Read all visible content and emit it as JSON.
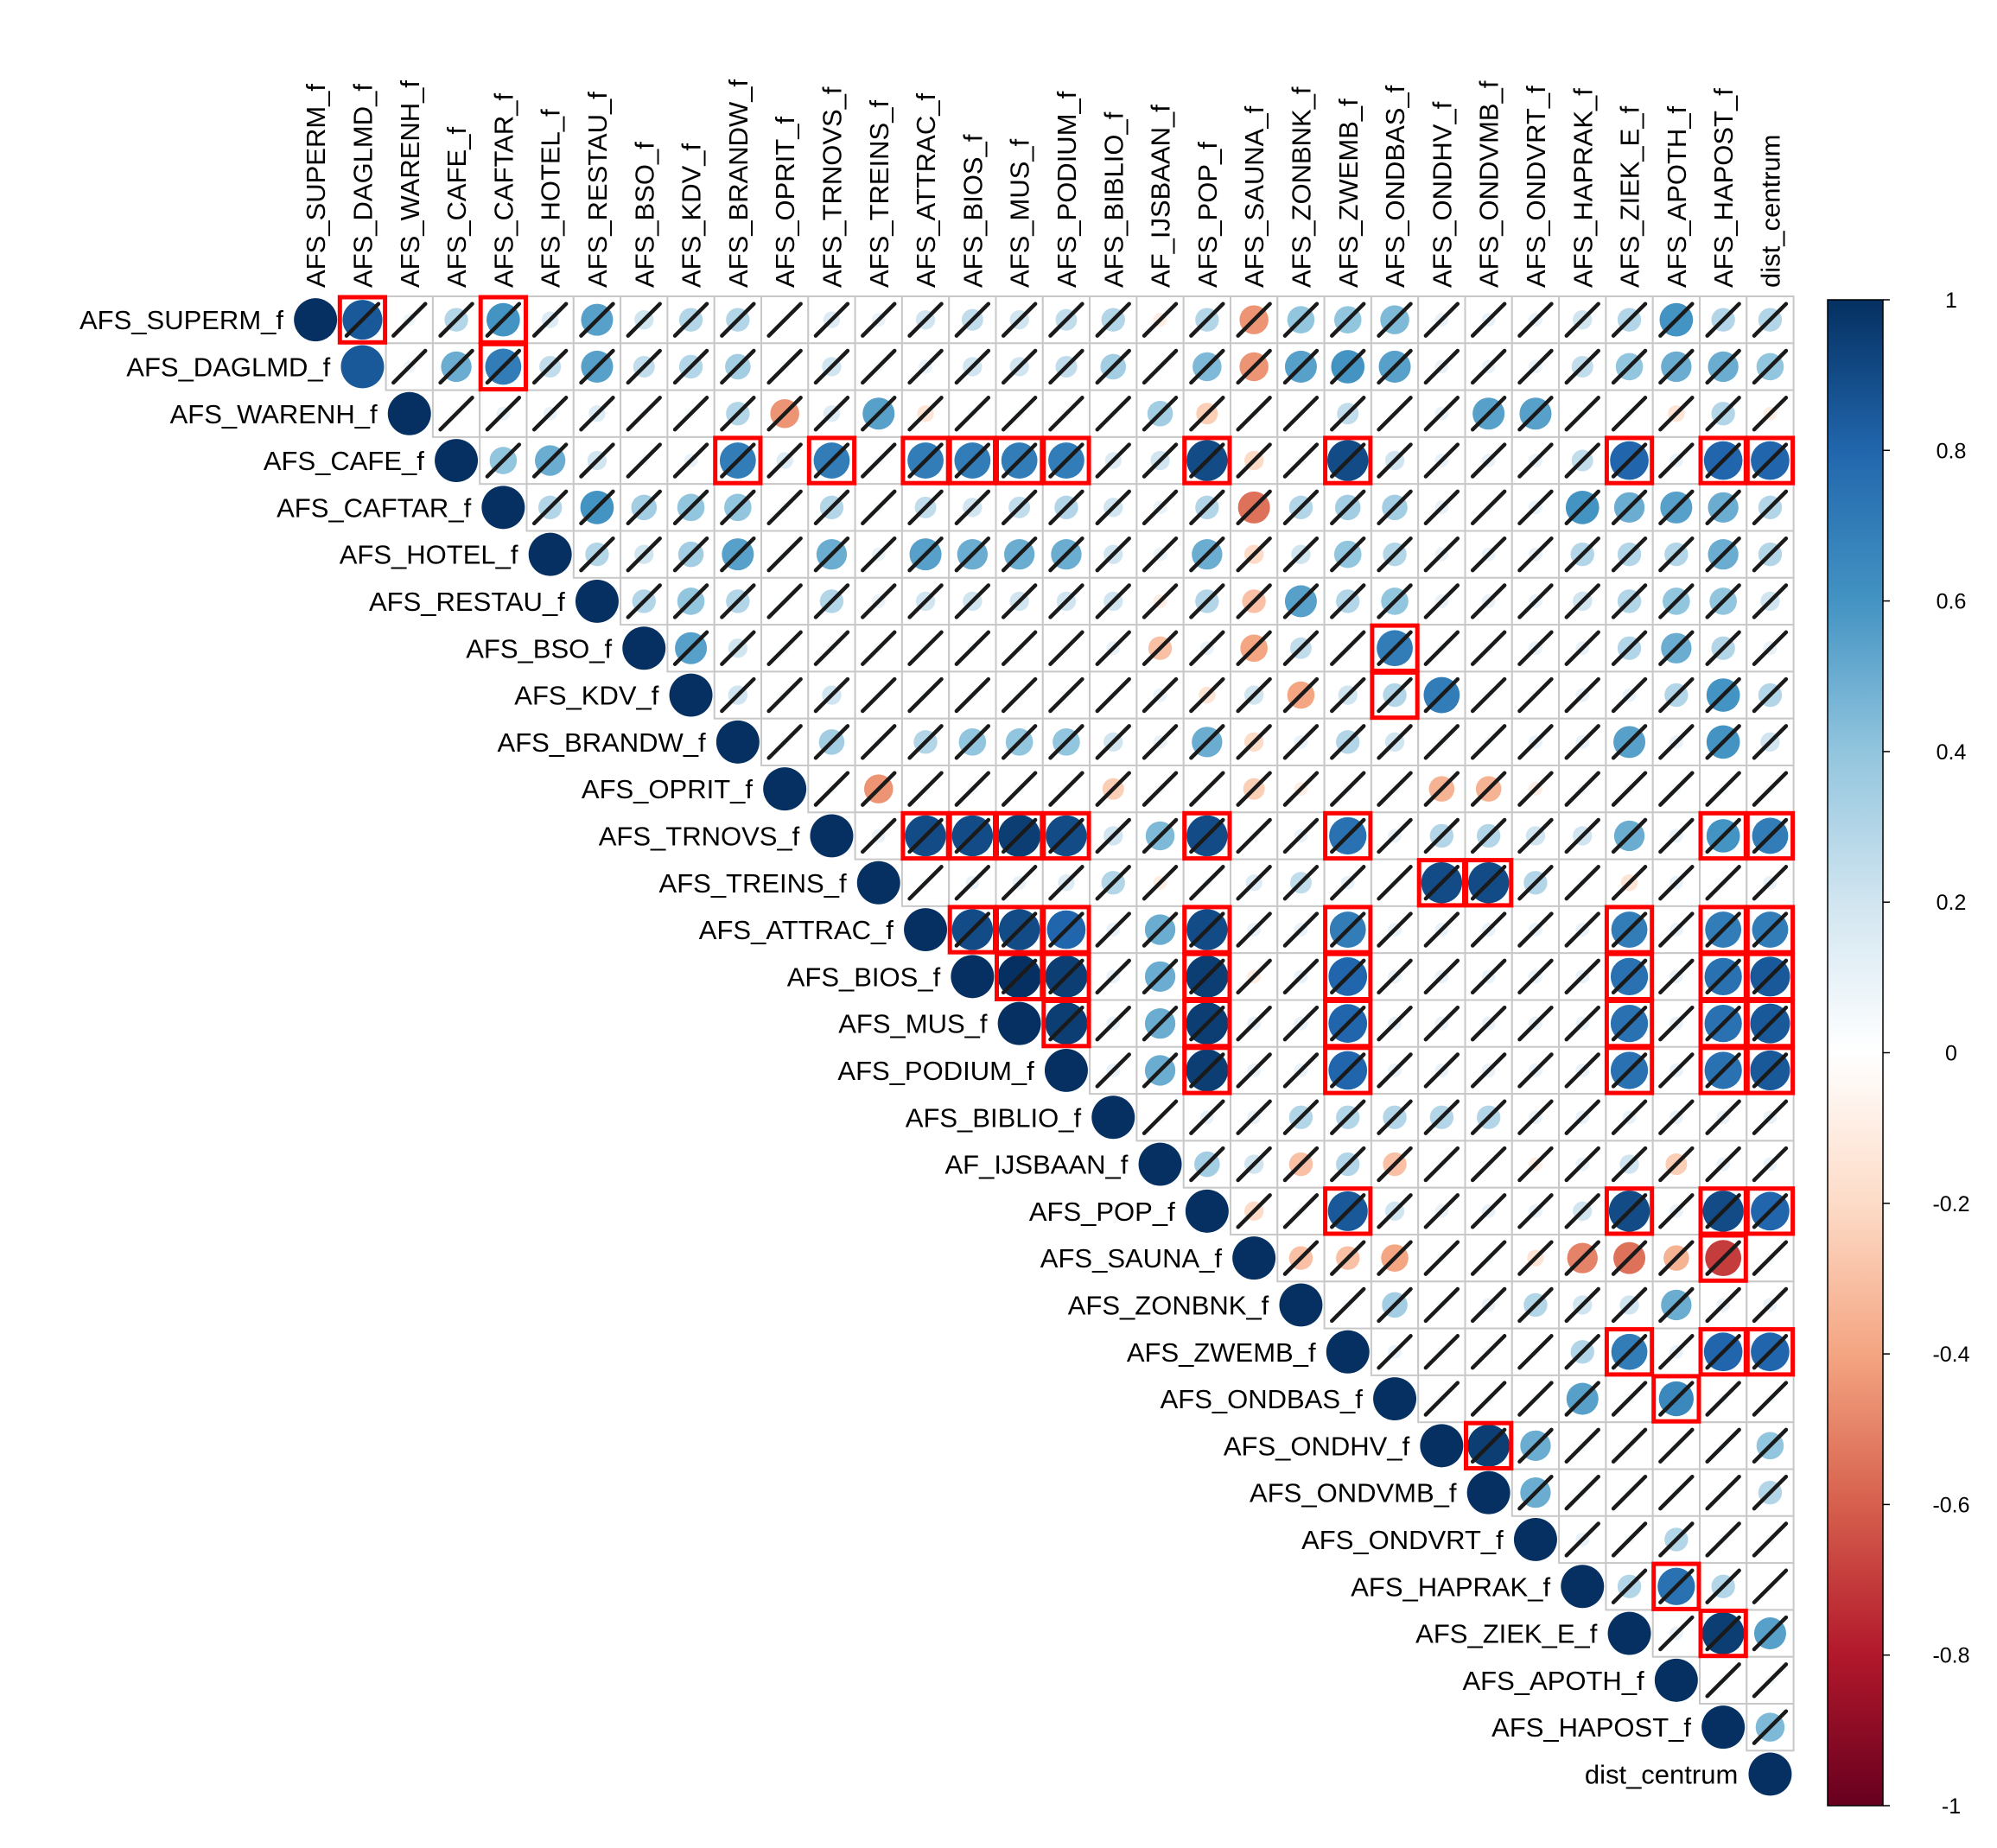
{
  "chart_data": {
    "type": "heatmap",
    "style": "corrplot-upper-circle",
    "title": "",
    "variables": [
      "AFS_SUPERM_f",
      "AFS_DAGLMD_f",
      "AFS_WARENH_f",
      "AFS_CAFE_f",
      "AFS_CAFTAR_f",
      "AFS_HOTEL_f",
      "AFS_RESTAU_f",
      "AFS_BSO_f",
      "AFS_KDV_f",
      "AFS_BRANDW_f",
      "AFS_OPRIT_f",
      "AFS_TRNOVS_f",
      "AFS_TREINS_f",
      "AFS_ATTRAC_f",
      "AFS_BIOS_f",
      "AFS_MUS_f",
      "AFS_PODIUM_f",
      "AFS_BIBLIO_f",
      "AF_IJSBAAN_f",
      "AFS_POP_f",
      "AFS_SAUNA_f",
      "AFS_ZONBNK_f",
      "AFS_ZWEMB_f",
      "AFS_ONDBAS_f",
      "AFS_ONDHV_f",
      "AFS_ONDVMB_f",
      "AFS_ONDVRT_f",
      "AFS_HAPRAK_f",
      "AFS_ZIEK_E_f",
      "AFS_APOTH_f",
      "AFS_HAPOST_f",
      "dist_centrum"
    ],
    "row_labels": [
      "AFS_SUPERM_f",
      "AFS_DAGLMD_f",
      "AFS_WARENH_f",
      "AFS_CAFE_f",
      "AFS_CAFTAR_f",
      "AFS_HOTEL_f",
      "AFS_RESTAU_f",
      "AFS_BSO_f",
      "AFS_KDV_f",
      "AFS_BRANDW_f",
      "AFS_OPRIT_f",
      "AFS_TRNOVS_f",
      "AFS_TREINS_f",
      "AFS_ATTRAC_f",
      "AFS_BIOS_f",
      "AFS_MUS_f",
      "AFS_PODIUM_f",
      "AFS_BIBLIO_f",
      "AF_IJSBAAN_f",
      "AFS_POP_f",
      "AFS_SAUNA_f",
      "AFS_ZONBNK_f",
      "AFS_ZWEMB_f",
      "AFS_ONDBAS_f",
      "AFS_ONDHV_f",
      "AFS_ONDVMB_f",
      "AFS_ONDVRT_f",
      "AFS_HAPRAK_f",
      "AFS_ZIEK_E_f",
      "AFS_APOTH_f",
      "AFS_HAPOST_f",
      "dist_centrum"
    ],
    "matrix_upper": [
      [
        1,
        0.85,
        0.08,
        0.3,
        0.6,
        0.15,
        0.55,
        0.2,
        0.3,
        0.3,
        0.03,
        0.15,
        0.1,
        0.2,
        0.25,
        0.2,
        0.25,
        0.3,
        -0.1,
        0.3,
        -0.45,
        0.4,
        0.4,
        0.45,
        0.1,
        0.1,
        0.1,
        0.2,
        0.3,
        0.6,
        0.3,
        0.3
      ],
      [
        0.85,
        0.08,
        0.5,
        0.7,
        0.25,
        0.55,
        0.25,
        0.3,
        0.35,
        0.05,
        0.2,
        0.05,
        0.1,
        0.2,
        0.2,
        0.25,
        0.35,
        0.05,
        0.45,
        -0.45,
        0.55,
        0.6,
        0.55,
        0.1,
        0.1,
        0.1,
        0.25,
        0.4,
        0.5,
        0.5,
        0.4
      ],
      [
        1,
        0.05,
        0.1,
        0.1,
        0.15,
        0.05,
        0.05,
        0.3,
        -0.45,
        0.15,
        0.55,
        -0.15,
        0.05,
        0.05,
        0.05,
        0.05,
        0.35,
        -0.25,
        0.05,
        0.05,
        0.25,
        0.05,
        0.1,
        0.55,
        0.55,
        0.05,
        0.05,
        -0.15,
        0.3,
        -0.1,
        0.05
      ],
      [
        1,
        0.4,
        0.5,
        0.2,
        0.05,
        0.1,
        0.7,
        0.15,
        0.7,
        0.05,
        0.7,
        0.7,
        0.7,
        0.7,
        0.15,
        0.2,
        0.9,
        -0.2,
        0.05,
        0.9,
        0.2,
        0.1,
        0.1,
        0.1,
        0.25,
        0.8,
        0.1,
        0.8,
        0.8
      ],
      [
        1,
        0.3,
        0.6,
        0.35,
        0.4,
        0.4,
        0.05,
        0.3,
        0.05,
        0.25,
        0.2,
        0.25,
        0.3,
        0.2,
        0.1,
        0.3,
        -0.55,
        0.3,
        0.35,
        0.35,
        0.1,
        0.05,
        0.1,
        0.6,
        0.5,
        0.55,
        0.5,
        0.3
      ],
      [
        1,
        0.3,
        0.2,
        0.35,
        0.55,
        0.05,
        0.5,
        0.1,
        0.55,
        0.5,
        0.5,
        0.5,
        0.2,
        0.1,
        0.5,
        -0.2,
        0.2,
        0.4,
        0.3,
        0.1,
        0.1,
        0.1,
        0.3,
        0.3,
        0.3,
        0.5,
        0.3
      ],
      [
        1,
        0.3,
        0.4,
        0.3,
        0.05,
        0.3,
        0.1,
        0.2,
        0.2,
        0.2,
        0.2,
        0.2,
        -0.1,
        0.3,
        -0.3,
        0.55,
        0.3,
        0.4,
        0.1,
        0.1,
        0.1,
        0.2,
        0.3,
        0.4,
        0.4,
        0.2
      ],
      [
        1,
        0.55,
        0.2,
        0.05,
        0.05,
        0.05,
        0.05,
        0.05,
        0.05,
        0.05,
        0.1,
        -0.3,
        0.1,
        -0.4,
        0.25,
        0.05,
        0.7,
        0.05,
        0.05,
        0.1,
        0.1,
        0.3,
        0.5,
        0.3,
        0.1
      ],
      [
        1,
        0.2,
        0.05,
        0.2,
        0.05,
        0.05,
        0.05,
        0.05,
        0.05,
        0.05,
        0.1,
        -0.15,
        0.2,
        -0.4,
        0.2,
        0.3,
        0.7,
        0.05,
        0.05,
        0.1,
        0.1,
        0.3,
        0.6,
        0.3,
        0.1
      ],
      [
        1,
        0.05,
        0.35,
        0.05,
        0.3,
        0.4,
        0.4,
        0.4,
        0.2,
        0.1,
        0.5,
        -0.2,
        0.1,
        0.3,
        0.2,
        0.05,
        0.05,
        0.1,
        0.1,
        0.55,
        0.1,
        0.6,
        0.2
      ],
      [
        1,
        0.05,
        -0.45,
        0.05,
        0.05,
        0.05,
        0.05,
        -0.25,
        0.05,
        0.05,
        -0.25,
        -0.1,
        0.05,
        0.05,
        -0.35,
        -0.35,
        -0.1,
        0.05,
        0.05,
        0.05,
        0.05,
        0.05
      ],
      [
        1,
        0.1,
        0.9,
        0.9,
        0.95,
        0.9,
        0.2,
        0.45,
        0.9,
        0.05,
        0.1,
        0.75,
        0.1,
        0.3,
        0.3,
        0.2,
        0.2,
        0.5,
        0.1,
        0.6,
        0.7
      ],
      [
        1,
        0.05,
        0.1,
        0.1,
        0.15,
        0.3,
        -0.1,
        0.05,
        0.15,
        0.25,
        0.1,
        0.05,
        0.9,
        0.9,
        0.3,
        0.05,
        -0.15,
        0.1,
        0.05,
        0.1
      ],
      [
        1,
        0.9,
        0.9,
        0.8,
        0.1,
        0.5,
        0.9,
        0.1,
        0.1,
        0.7,
        0.1,
        0.1,
        0.1,
        0.1,
        0.1,
        0.7,
        0.1,
        0.7,
        0.7
      ],
      [
        1,
        1,
        0.95,
        0.1,
        0.5,
        0.95,
        -0.1,
        0.1,
        0.8,
        0.1,
        0.1,
        0.1,
        0.1,
        0.1,
        0.75,
        0.1,
        0.75,
        0.85
      ],
      [
        1,
        0.95,
        0.1,
        0.5,
        0.95,
        0.1,
        0.1,
        0.8,
        0.1,
        0.1,
        0.1,
        0.1,
        0.1,
        0.75,
        0.1,
        0.75,
        0.85
      ],
      [
        1,
        0.1,
        0.5,
        0.95,
        0.1,
        0.1,
        0.8,
        0.1,
        0.1,
        0.1,
        0.1,
        0.1,
        0.75,
        0.1,
        0.75,
        0.85
      ],
      [
        1,
        0.05,
        0.1,
        0.1,
        0.3,
        0.3,
        0.3,
        0.3,
        0.3,
        0.1,
        0.1,
        0.1,
        0.1,
        0.1,
        0.1
      ],
      [
        1,
        0.35,
        0.2,
        -0.3,
        0.3,
        -0.3,
        0.05,
        0.05,
        -0.1,
        0.1,
        0.2,
        -0.25,
        0.1,
        0.1
      ],
      [
        1,
        -0.2,
        0.05,
        0.85,
        0.2,
        0.1,
        0.1,
        0.1,
        0.2,
        0.9,
        0.1,
        0.9,
        0.8
      ],
      [
        1,
        -0.3,
        -0.3,
        -0.4,
        0.05,
        0.05,
        -0.15,
        -0.5,
        -0.55,
        -0.35,
        -0.7,
        0.05
      ],
      [
        1,
        0.05,
        0.35,
        0.05,
        0.1,
        0.3,
        0.2,
        0.2,
        0.5,
        0.1,
        0.1
      ],
      [
        1,
        0.1,
        0.05,
        0.05,
        0.05,
        0.3,
        0.7,
        0.1,
        0.8,
        0.8
      ],
      [
        1,
        0.05,
        0.05,
        0.05,
        0.55,
        0.05,
        0.65,
        0.05,
        0.05
      ],
      [
        1,
        0.95,
        0.5,
        0.05,
        0.05,
        0.05,
        0.05,
        0.4
      ],
      [
        1,
        0.5,
        0.05,
        0.05,
        0.05,
        0.05,
        0.3
      ],
      [
        1,
        0.1,
        0.05,
        0.3,
        0.05,
        0.05
      ],
      [
        1,
        0.3,
        0.75,
        0.3,
        0.05
      ],
      [
        1,
        0.1,
        0.95,
        0.55
      ],
      [
        1,
        0.05,
        0.05
      ],
      [
        1,
        0.45
      ],
      [
        1
      ]
    ],
    "highlighted_cells": [
      [
        0,
        1
      ],
      [
        0,
        4
      ],
      [
        1,
        4
      ],
      [
        3,
        9
      ],
      [
        3,
        11
      ],
      [
        3,
        13
      ],
      [
        3,
        14
      ],
      [
        3,
        15
      ],
      [
        3,
        16
      ],
      [
        3,
        19
      ],
      [
        3,
        22
      ],
      [
        3,
        28
      ],
      [
        3,
        30
      ],
      [
        3,
        31
      ],
      [
        7,
        23
      ],
      [
        8,
        23
      ],
      [
        11,
        13
      ],
      [
        11,
        14
      ],
      [
        11,
        15
      ],
      [
        11,
        16
      ],
      [
        11,
        19
      ],
      [
        11,
        22
      ],
      [
        11,
        30
      ],
      [
        11,
        31
      ],
      [
        12,
        24
      ],
      [
        12,
        25
      ],
      [
        13,
        14
      ],
      [
        13,
        15
      ],
      [
        13,
        16
      ],
      [
        13,
        19
      ],
      [
        13,
        22
      ],
      [
        13,
        28
      ],
      [
        13,
        30
      ],
      [
        13,
        31
      ],
      [
        14,
        15
      ],
      [
        14,
        16
      ],
      [
        14,
        19
      ],
      [
        14,
        22
      ],
      [
        14,
        28
      ],
      [
        14,
        30
      ],
      [
        14,
        31
      ],
      [
        15,
        16
      ],
      [
        15,
        19
      ],
      [
        15,
        22
      ],
      [
        15,
        28
      ],
      [
        15,
        30
      ],
      [
        15,
        31
      ],
      [
        16,
        19
      ],
      [
        16,
        22
      ],
      [
        16,
        28
      ],
      [
        16,
        30
      ],
      [
        16,
        31
      ],
      [
        19,
        22
      ],
      [
        19,
        28
      ],
      [
        19,
        30
      ],
      [
        19,
        31
      ],
      [
        20,
        30
      ],
      [
        22,
        28
      ],
      [
        22,
        30
      ],
      [
        22,
        31
      ],
      [
        23,
        29
      ],
      [
        24,
        25
      ],
      [
        27,
        29
      ],
      [
        28,
        30
      ]
    ],
    "colorbar": {
      "min": -1,
      "max": 1,
      "tick_labels": [
        "1",
        "0.8",
        "0.6",
        "0.4",
        "0.2",
        "0",
        "-0.2",
        "-0.4",
        "-0.6",
        "-0.8",
        "-1"
      ],
      "colors": [
        "#67001F",
        "#B2182B",
        "#D6604D",
        "#F4A582",
        "#FDDBC7",
        "#FFFFFF",
        "#D1E5F0",
        "#92C5DE",
        "#4393C3",
        "#2166AC",
        "#053061"
      ]
    },
    "highlight_color": "#FF0000",
    "grid": true,
    "legend_position": "right"
  }
}
